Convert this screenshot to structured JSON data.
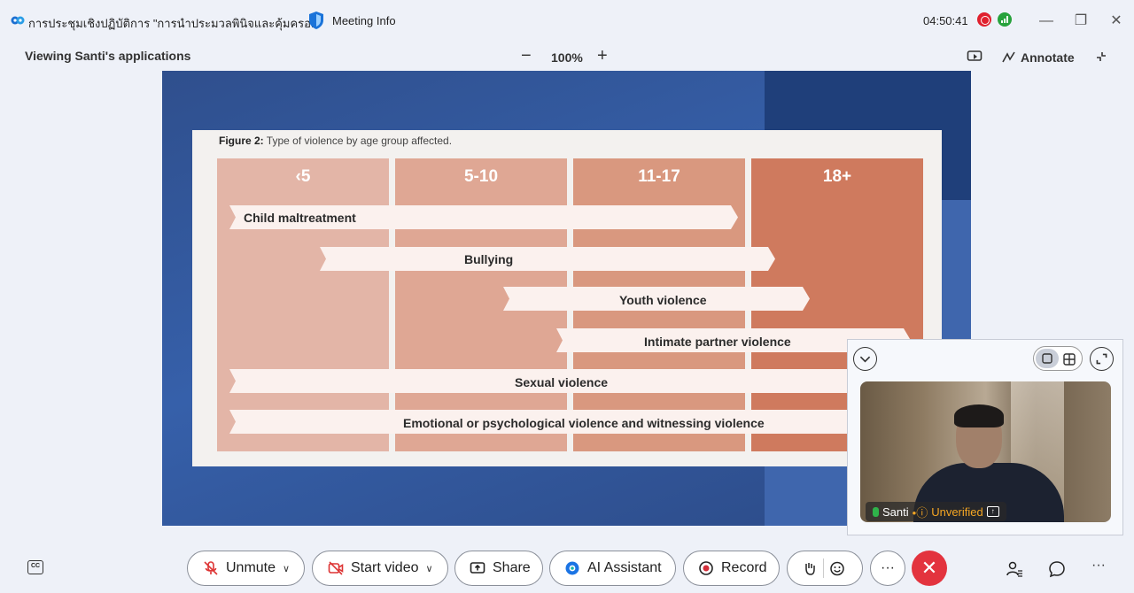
{
  "titlebar": {
    "meeting_title": "การประชุมเชิงปฏิบัติการ \"การนำประมวลพินิจและคุ้มครอ...",
    "meeting_info": "Meeting Info",
    "time": "04:50:41",
    "colors": {
      "record": "#e0202e",
      "signal": "#27a23c"
    }
  },
  "subheader": {
    "viewing": "Viewing Santi's applications",
    "zoom_out": "−",
    "zoom": "100%",
    "zoom_in": "+",
    "annotate": "Annotate"
  },
  "slide": {
    "figure_prefix": "Figure 2:",
    "figure_caption": " Type of violence by age group affected.",
    "age_groups": [
      "‹5",
      "5-10",
      "11-17",
      "18+"
    ],
    "violence_types": [
      "Child maltreatment",
      "Bullying",
      "Youth violence",
      "Intimate partner violence",
      "Sexual violence",
      "Emotional or psychological violence and witnessing violence"
    ]
  },
  "self_view": {
    "name": "Santi",
    "status": "Unverified"
  },
  "toolbar": {
    "unmute": "Unmute",
    "start_video": "Start video",
    "share": "Share",
    "ai_assistant": "AI Assistant",
    "record": "Record",
    "more": "···",
    "end": "✕",
    "overflow": "···",
    "cc": "CC"
  }
}
